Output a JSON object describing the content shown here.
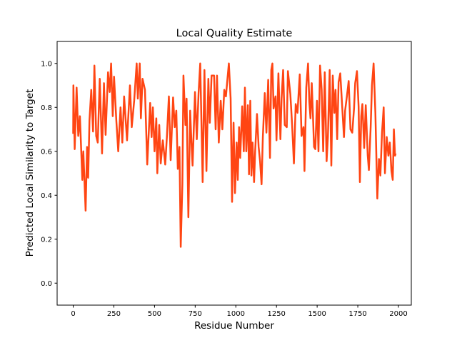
{
  "chart_data": {
    "type": "line",
    "title": "Local Quality Estimate",
    "xlabel": "Residue Number",
    "ylabel": "Predicted Local Similarity to Target",
    "xlim": [
      -99,
      2079
    ],
    "ylim": [
      -0.1,
      1.1
    ],
    "xticks": [
      0,
      250,
      500,
      750,
      1000,
      1250,
      1500,
      1750,
      2000
    ],
    "xtick_labels": [
      "0",
      "250",
      "500",
      "750",
      "1000",
      "1250",
      "1500",
      "1750",
      "2000"
    ],
    "yticks": [
      0.0,
      0.2,
      0.4,
      0.6,
      0.8,
      1.0
    ],
    "ytick_labels": [
      "0.0",
      "0.2",
      "0.4",
      "0.6",
      "0.8",
      "1.0"
    ],
    "grid": false,
    "series": [
      {
        "name": "local quality",
        "color": "#ff4513",
        "x": [
          0,
          1,
          9,
          21,
          31,
          41,
          56,
          62,
          76,
          85,
          92,
          100,
          111,
          122,
          130,
          141,
          151,
          163,
          177,
          189,
          199,
          214,
          224,
          233,
          243,
          251,
          265,
          277,
          291,
          302,
          313,
          331,
          349,
          360,
          375,
          390,
          397,
          409,
          416,
          426,
          441,
          455,
          473,
          482,
          490,
          500,
          511,
          517,
          529,
          538,
          551,
          566,
          576,
          588,
          599,
          614,
          624,
          634,
          643,
          653,
          661,
          671,
          678,
          690,
          697,
          708,
          719,
          727,
          734,
          749,
          760,
          771,
          781,
          796,
          807,
          819,
          831,
          840,
          851,
          866,
          876,
          884,
          895,
          907,
          917,
          929,
          939,
          948,
          957,
          968,
          977,
          986,
          995,
          1005,
          1012,
          1020,
          1027,
          1039,
          1049,
          1056,
          1064,
          1074,
          1081,
          1089,
          1096,
          1103,
          1112,
          1119,
          1130,
          1140,
          1149,
          1158,
          1166,
          1178,
          1188,
          1199,
          1210,
          1218,
          1225,
          1232,
          1244,
          1250,
          1262,
          1274,
          1281,
          1291,
          1301,
          1313,
          1320,
          1335,
          1346,
          1357,
          1368,
          1379,
          1393,
          1404,
          1416,
          1422,
          1433,
          1444,
          1452,
          1459,
          1467,
          1474,
          1481,
          1489,
          1499,
          1508,
          1518,
          1528,
          1537,
          1547,
          1558,
          1566,
          1577,
          1587,
          1596,
          1606,
          1613,
          1623,
          1632,
          1642,
          1654,
          1665,
          1672,
          1683,
          1694,
          1705,
          1716,
          1727,
          1734,
          1745,
          1755,
          1763,
          1771,
          1778,
          1789,
          1799,
          1811,
          1818,
          1829,
          1837,
          1847,
          1858,
          1870,
          1880,
          1889,
          1899,
          1909,
          1917,
          1928,
          1938,
          1947,
          1957,
          1965,
          1972,
          1979,
          1983
        ],
        "y": [
          0.68,
          0.9,
          0.61,
          0.89,
          0.67,
          0.76,
          0.47,
          0.6,
          0.33,
          0.62,
          0.48,
          0.74,
          0.88,
          0.69,
          0.99,
          0.67,
          0.64,
          0.93,
          0.59,
          0.91,
          0.675,
          0.96,
          0.87,
          1.0,
          0.76,
          0.94,
          0.74,
          0.6,
          0.8,
          0.64,
          0.85,
          0.65,
          0.9,
          0.71,
          0.83,
          1.0,
          0.84,
          1.0,
          0.75,
          0.93,
          0.88,
          0.54,
          0.82,
          0.665,
          0.8,
          0.6,
          0.75,
          0.5,
          0.72,
          0.545,
          0.65,
          0.54,
          0.665,
          0.85,
          0.56,
          0.845,
          0.71,
          0.785,
          0.52,
          0.62,
          0.165,
          0.45,
          0.945,
          0.72,
          0.84,
          0.3,
          0.785,
          0.64,
          0.535,
          0.87,
          0.655,
          0.865,
          1.0,
          0.46,
          0.97,
          0.51,
          0.93,
          0.73,
          0.945,
          0.945,
          0.7,
          0.945,
          0.64,
          0.83,
          0.7,
          0.88,
          0.85,
          0.925,
          1.0,
          0.84,
          0.37,
          0.73,
          0.41,
          0.64,
          0.47,
          0.71,
          0.57,
          0.805,
          0.6,
          0.89,
          0.6,
          0.81,
          0.495,
          0.83,
          0.49,
          0.64,
          0.46,
          0.605,
          0.77,
          0.62,
          0.555,
          0.45,
          0.665,
          0.865,
          0.685,
          0.925,
          0.57,
          0.97,
          1.0,
          0.795,
          0.85,
          0.65,
          0.955,
          0.655,
          0.84,
          0.97,
          0.72,
          0.71,
          0.965,
          0.86,
          0.72,
          0.545,
          0.815,
          0.775,
          0.95,
          0.67,
          0.71,
          0.51,
          0.89,
          1.0,
          0.825,
          0.75,
          0.91,
          0.77,
          0.62,
          0.61,
          0.83,
          0.6,
          0.99,
          0.88,
          0.6,
          0.96,
          0.555,
          0.665,
          0.97,
          0.535,
          0.945,
          0.775,
          0.88,
          0.655,
          0.915,
          0.955,
          0.805,
          0.665,
          0.785,
          0.85,
          0.92,
          0.7,
          0.685,
          0.795,
          0.91,
          0.965,
          0.805,
          0.46,
          0.76,
          0.815,
          0.615,
          0.81,
          0.58,
          0.515,
          0.71,
          0.9,
          1.0,
          0.775,
          0.385,
          0.565,
          0.49,
          0.685,
          0.8,
          0.5,
          0.665,
          0.58,
          0.64,
          0.51,
          0.47,
          0.7,
          0.58,
          0.59
        ]
      }
    ]
  }
}
